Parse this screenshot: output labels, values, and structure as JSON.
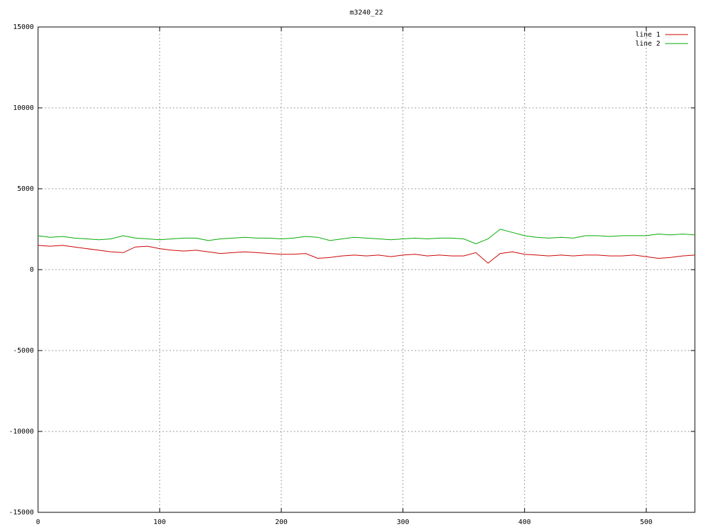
{
  "chart_data": {
    "type": "line",
    "title": "m3240_22",
    "x": [
      0,
      10,
      20,
      30,
      40,
      50,
      60,
      70,
      80,
      90,
      100,
      110,
      120,
      130,
      140,
      150,
      160,
      170,
      180,
      190,
      200,
      210,
      220,
      230,
      240,
      250,
      260,
      270,
      280,
      290,
      300,
      310,
      320,
      330,
      340,
      350,
      360,
      370,
      380,
      390,
      400,
      410,
      420,
      430,
      440,
      450,
      460,
      470,
      480,
      490,
      500,
      510,
      520,
      530,
      540
    ],
    "series": [
      {
        "name": "line 1",
        "color": "#cc0000",
        "values": [
          1500,
          1450,
          1500,
          1400,
          1300,
          1200,
          1100,
          1050,
          1400,
          1450,
          1300,
          1200,
          1150,
          1200,
          1100,
          1000,
          1050,
          1100,
          1050,
          1000,
          950,
          950,
          1000,
          700,
          750,
          850,
          900,
          850,
          900,
          800,
          900,
          950,
          850,
          900,
          850,
          850,
          1050,
          400,
          1000,
          1100,
          950,
          900,
          850,
          900,
          850,
          900,
          900,
          850,
          850,
          900,
          800,
          700,
          750,
          850,
          900
        ]
      },
      {
        "name": "line 2",
        "color": "#00aa00",
        "values": [
          2100,
          2000,
          2050,
          1950,
          1900,
          1850,
          1900,
          2100,
          1950,
          1900,
          1850,
          1900,
          1950,
          1950,
          1800,
          1900,
          1950,
          2000,
          1950,
          1950,
          1900,
          1950,
          2050,
          2000,
          1800,
          1900,
          2000,
          1950,
          1900,
          1850,
          1900,
          1950,
          1900,
          1950,
          1950,
          1900,
          1600,
          1900,
          2500,
          2300,
          2100,
          2000,
          1950,
          2000,
          1950,
          2100,
          2100,
          2050,
          2100,
          2100,
          2100,
          2200,
          2150,
          2200,
          2150
        ]
      }
    ],
    "xlim": [
      0,
      540
    ],
    "xticks": [
      0,
      100,
      200,
      300,
      400,
      500
    ],
    "ylim": [
      -15000,
      15000
    ],
    "yticks": [
      -15000,
      -10000,
      -5000,
      0,
      5000,
      10000,
      15000
    ],
    "grid": true,
    "legend": "top-right"
  }
}
